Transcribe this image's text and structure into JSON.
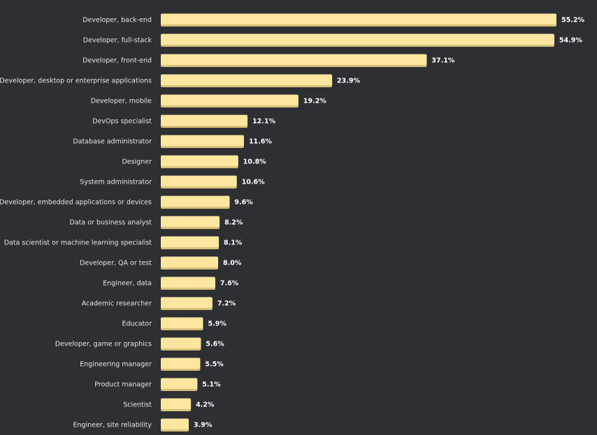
{
  "chart_data": {
    "type": "bar",
    "orientation": "horizontal",
    "title": "",
    "xlabel": "",
    "ylabel": "",
    "unit": "%",
    "categories": [
      "Developer, back-end",
      "Developer, full-stack",
      "Developer, front-end",
      "Developer, desktop or enterprise applications",
      "Developer, mobile",
      "DevOps specialist",
      "Database administrator",
      "Designer",
      "System administrator",
      "Developer, embedded applications or devices",
      "Data or business analyst",
      "Data scientist or machine learning specialist",
      "Developer, QA or test",
      "Engineer, data",
      "Academic researcher",
      "Educator",
      "Developer, game or graphics",
      "Engineering manager",
      "Product manager",
      "Scientist",
      "Engineer, site reliability"
    ],
    "values": [
      55.2,
      54.9,
      37.1,
      23.9,
      19.2,
      12.1,
      11.6,
      10.8,
      10.6,
      9.6,
      8.2,
      8.1,
      8.0,
      7.6,
      7.2,
      5.9,
      5.6,
      5.5,
      5.1,
      4.2,
      3.9
    ],
    "value_labels": [
      "55.2%",
      "54.9%",
      "37.1%",
      "23.9%",
      "19.2%",
      "12.1%",
      "11.6%",
      "10.8%",
      "10.6%",
      "9.6%",
      "8.2%",
      "8.1%",
      "8.0%",
      "7.6%",
      "7.2%",
      "5.9%",
      "5.6%",
      "5.5%",
      "5.1%",
      "4.2%",
      "3.9%"
    ],
    "grid": false,
    "legend": "none",
    "colors": {
      "bar": "#fde7a0",
      "bar_shadow": "#d8c17a",
      "background": "#2d2f33",
      "label": "#e6e6e6",
      "value_label": "#ffffff"
    }
  }
}
